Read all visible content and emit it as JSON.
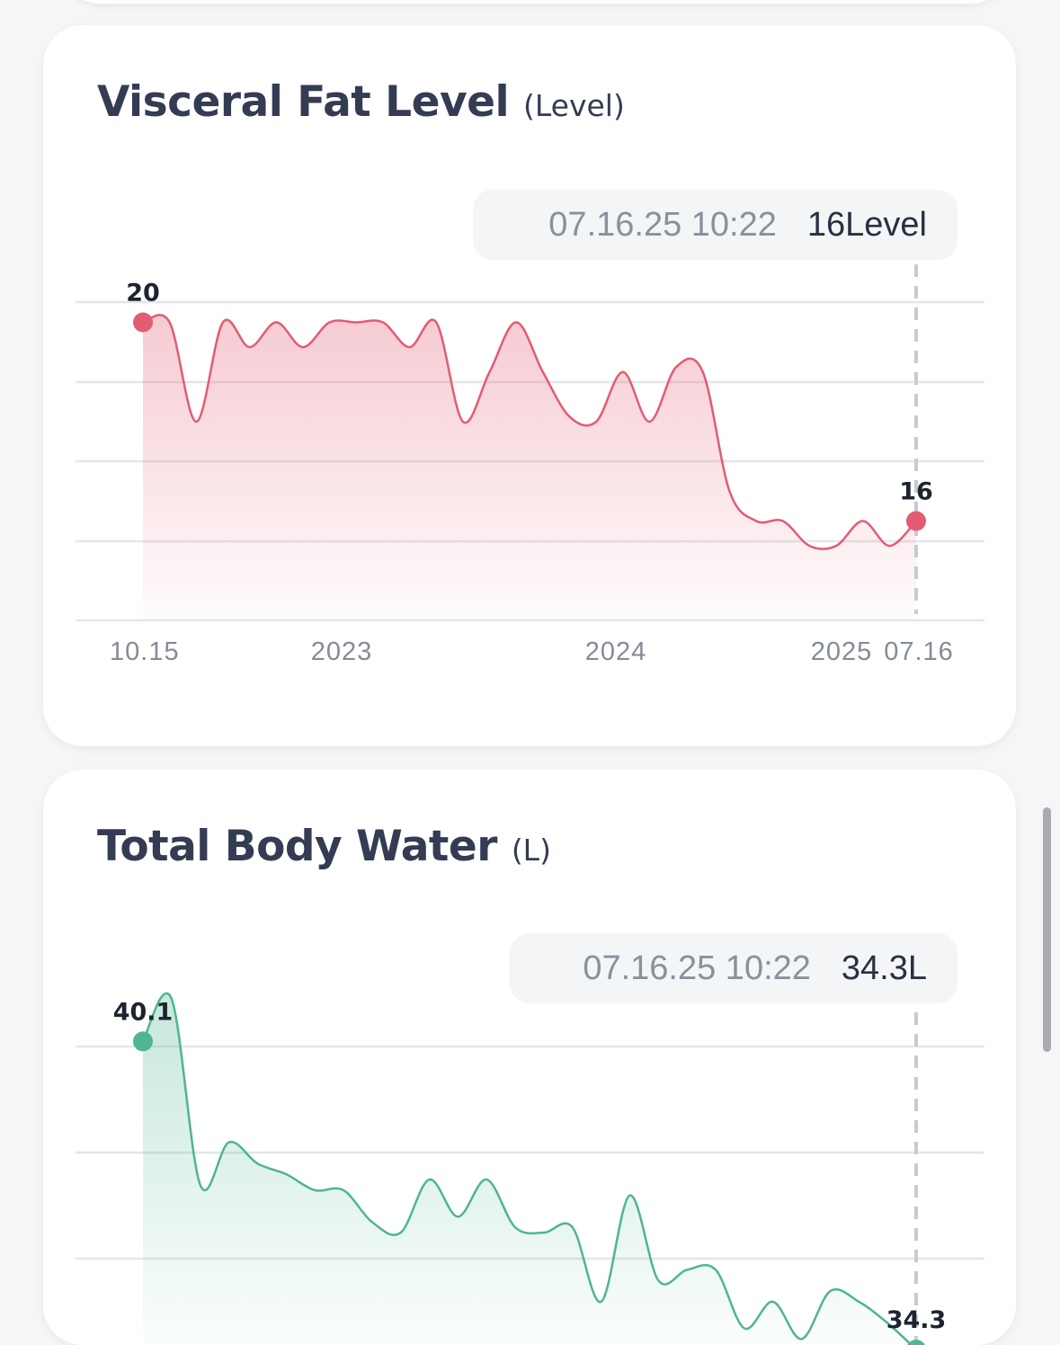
{
  "cards": [
    {
      "title": "Visceral Fat Level",
      "unit": "(Level)",
      "tooltip": {
        "date": "07.16.25 10:22",
        "value": "16Level"
      }
    },
    {
      "title": "Total Body Water",
      "unit": "(L)",
      "tooltip": {
        "date": "07.16.25 10:22",
        "value": "34.3L"
      }
    }
  ],
  "chart_data": [
    {
      "type": "area",
      "color": "#e25c72",
      "x_ticks": [
        "10.15",
        "2023",
        "2024",
        "2025",
        "07.16"
      ],
      "ylim": [
        14,
        22
      ],
      "grid": true,
      "values": [
        20,
        20,
        18,
        20,
        19.5,
        20,
        19.5,
        20,
        20,
        20,
        19.5,
        20,
        18,
        19,
        20,
        19,
        18.1,
        18,
        19,
        18,
        19.1,
        19,
        16.6,
        16,
        16,
        15.5,
        15.5,
        16,
        15.5,
        16
      ],
      "first_label": "20",
      "last_label": "16"
    },
    {
      "type": "area",
      "color": "#4fb592",
      "x_ticks": [],
      "ylim": [
        32,
        42
      ],
      "grid": true,
      "values": [
        40.1,
        40.9,
        37.4,
        38.2,
        37.8,
        37.6,
        37.3,
        37.3,
        36.7,
        36.5,
        37.5,
        36.8,
        37.5,
        36.6,
        36.5,
        36.6,
        35.2,
        37.2,
        35.6,
        35.8,
        35.8,
        34.7,
        35.2,
        34.5,
        35.4,
        35.2,
        34.8,
        34.3
      ],
      "first_label": "40.1",
      "last_label": "34.3"
    }
  ]
}
